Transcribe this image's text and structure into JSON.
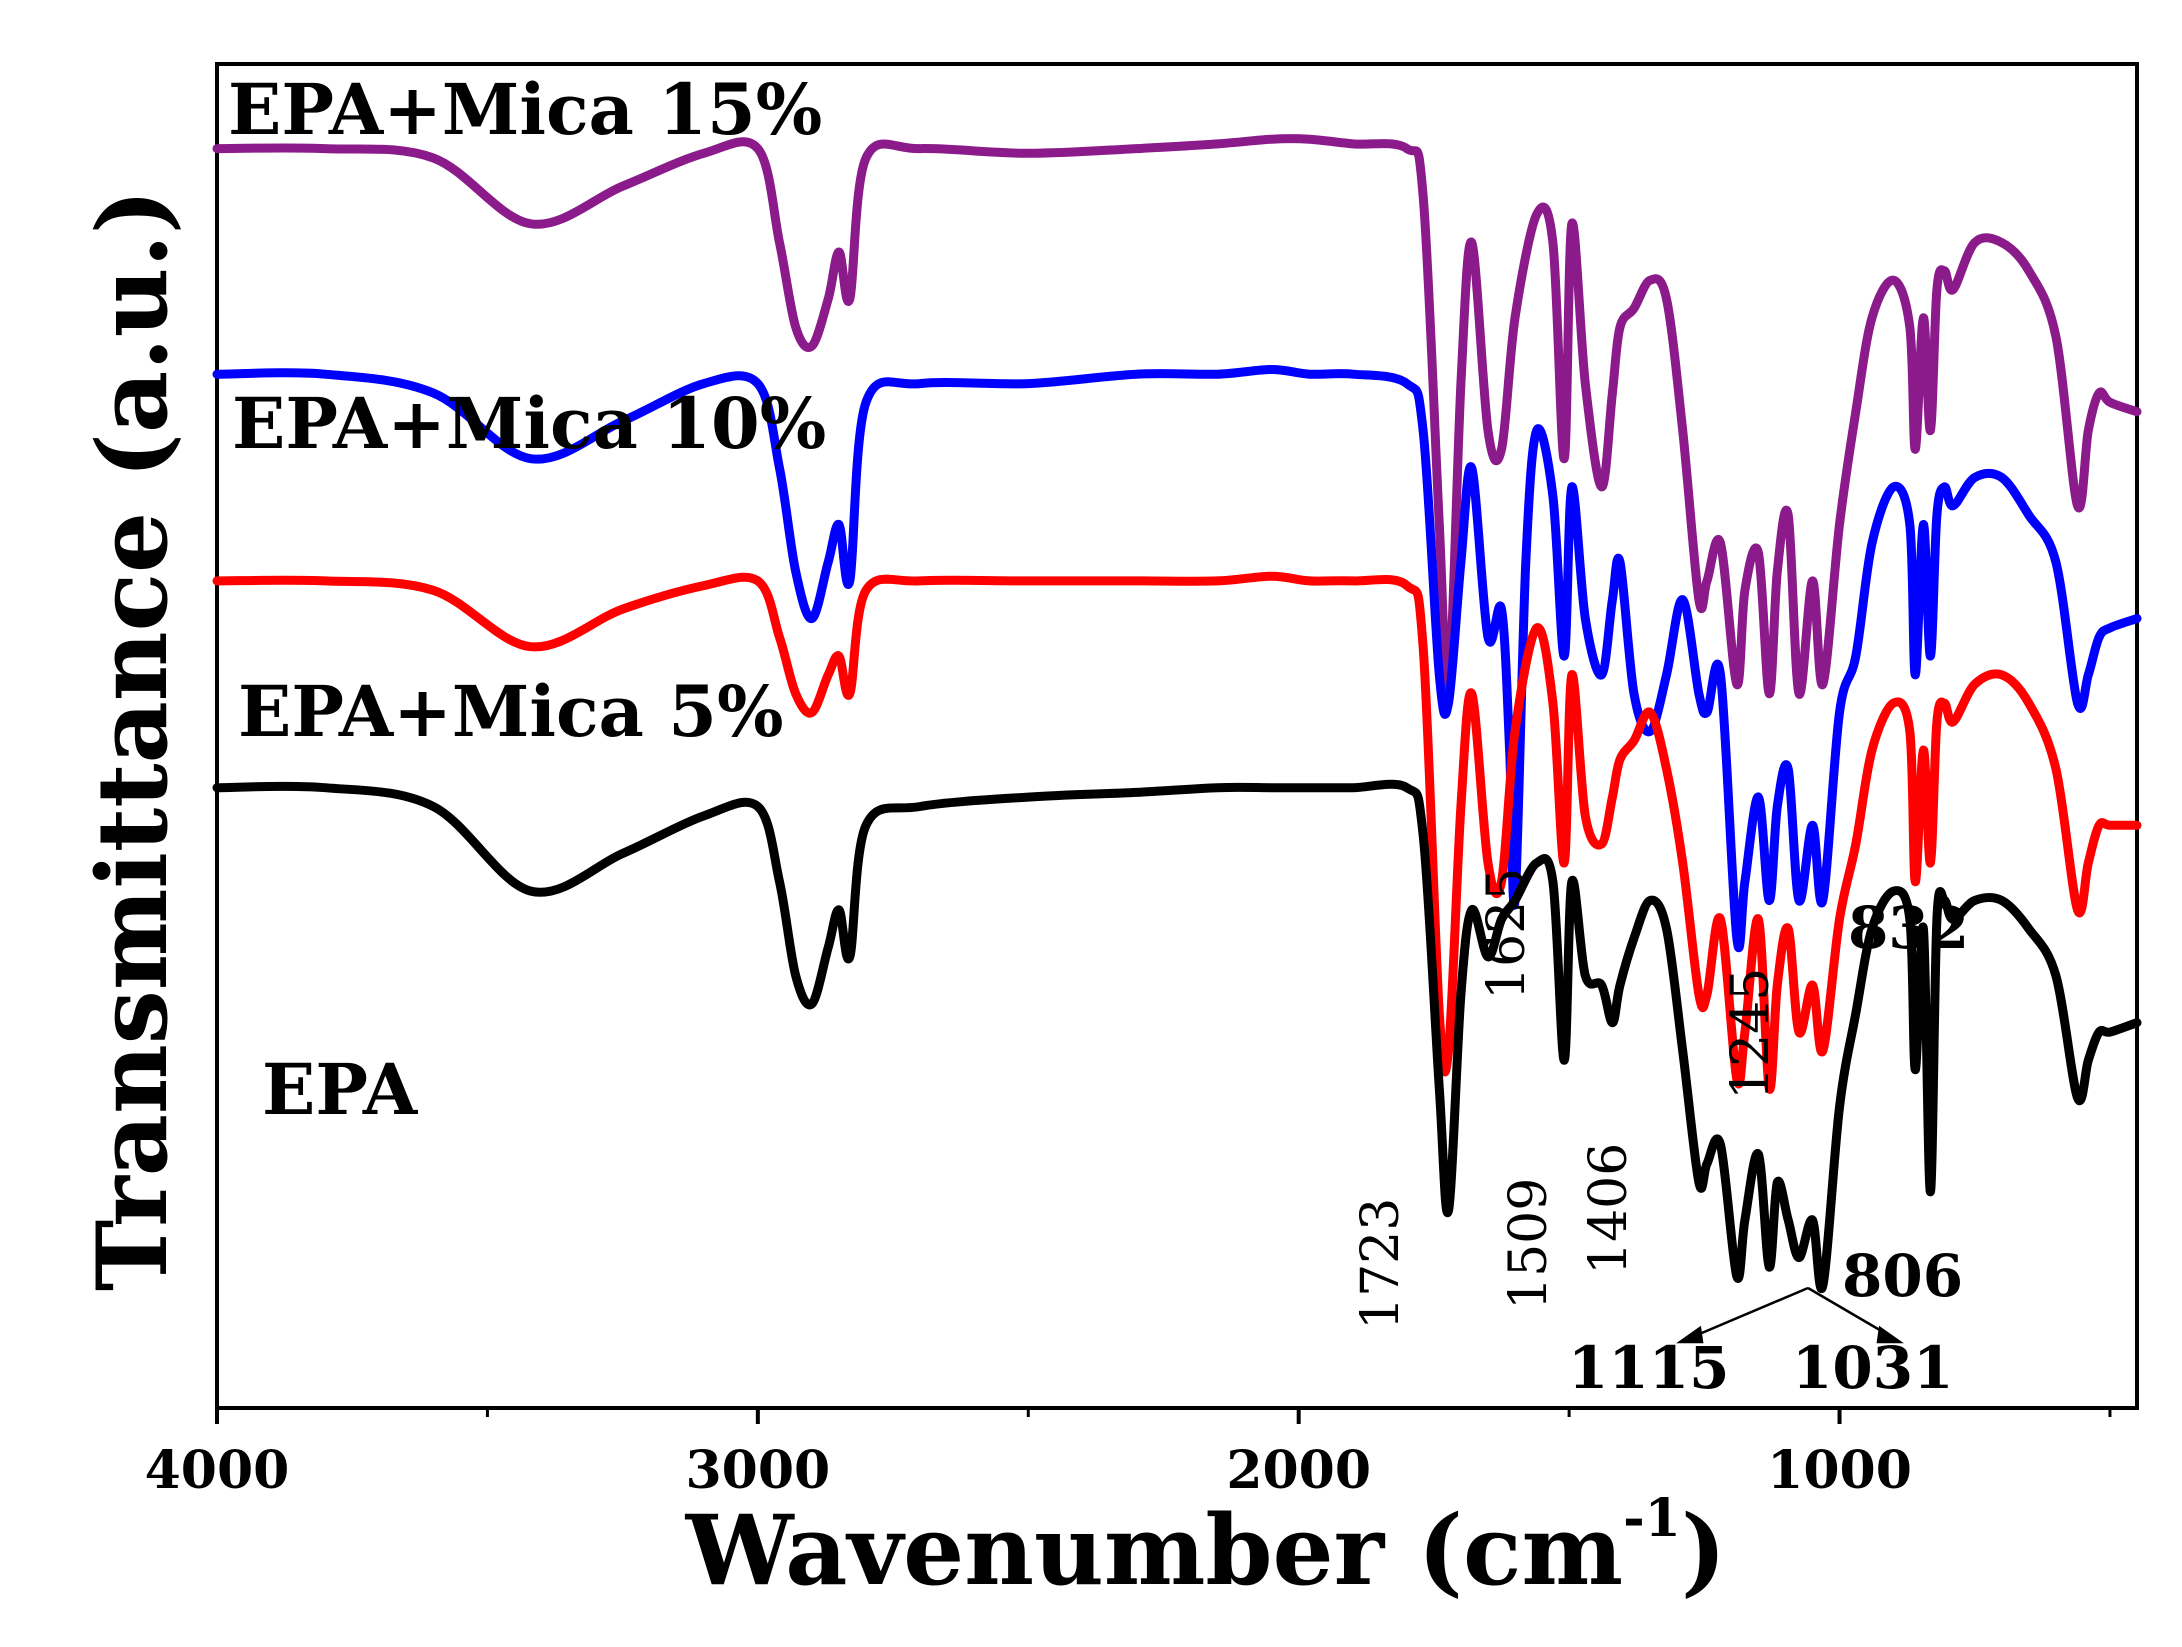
{
  "chart_data": {
    "type": "line",
    "title": "",
    "xlabel": "Wavenumber (cm",
    "xlabel_sup": "-1",
    "xlabel_close": ")",
    "ylabel": "Transmittance (a.u.)",
    "xlim": [
      4000,
      450
    ],
    "x_reversed": true,
    "xticks": [
      4000,
      3000,
      2000,
      1000
    ],
    "yticks": [],
    "grid": false,
    "legend": "inline-labels",
    "colors": {
      "EPA": "#000000",
      "EPA+Mica 5%": "#ff0000",
      "EPA+Mica 10%": "#0000ff",
      "EPA+Mica 15%": "#8b1a8b"
    },
    "series": [
      {
        "name": "EPA+Mica 15%",
        "color": "#8b1a8b",
        "offset": 6.8,
        "x": [
          4000,
          3800,
          3600,
          3420,
          3250,
          3100,
          3000,
          2960,
          2930,
          2900,
          2870,
          2850,
          2830,
          2800,
          2700,
          2500,
          2300,
          2150,
          2050,
          1980,
          1900,
          1800,
          1770,
          1740,
          1723,
          1700,
          1680,
          1650,
          1625,
          1600,
          1560,
          1530,
          1509,
          1495,
          1470,
          1440,
          1420,
          1406,
          1380,
          1350,
          1320,
          1290,
          1260,
          1245,
          1220,
          1190,
          1175,
          1150,
          1130,
          1115,
          1095,
          1075,
          1050,
          1031,
          1000,
          970,
          940,
          900,
          870,
          860,
          845,
          832,
          820,
          806,
          790,
          750,
          700,
          650,
          600,
          560,
          540,
          520,
          500,
          450
        ],
        "y": [
          0.0,
          0.0,
          -0.1,
          -0.8,
          -0.4,
          -0.05,
          0.0,
          -1.0,
          -1.9,
          -2.1,
          -1.6,
          -1.1,
          -1.6,
          -0.1,
          0.0,
          -0.05,
          0.0,
          0.05,
          0.1,
          0.1,
          0.05,
          0.0,
          -0.5,
          -4.0,
          -5.8,
          -2.5,
          -1.0,
          -3.0,
          -3.2,
          -1.8,
          -0.7,
          -1.0,
          -3.3,
          -0.8,
          -2.5,
          -3.6,
          -2.6,
          -1.9,
          -1.7,
          -1.4,
          -1.6,
          -3.0,
          -4.8,
          -4.6,
          -4.2,
          -5.7,
          -4.7,
          -4.3,
          -5.8,
          -4.5,
          -3.9,
          -5.8,
          -4.6,
          -5.7,
          -4.0,
          -2.8,
          -1.8,
          -1.4,
          -1.9,
          -3.2,
          -1.8,
          -3.0,
          -1.5,
          -1.3,
          -1.5,
          -1.0,
          -1.0,
          -1.3,
          -2.0,
          -3.8,
          -3.0,
          -2.6,
          -2.7,
          -2.8
        ]
      },
      {
        "name": "EPA+Mica 10%",
        "color": "#0000ff",
        "offset": 4.4,
        "x": [
          4000,
          3800,
          3600,
          3420,
          3250,
          3100,
          3000,
          2960,
          2930,
          2900,
          2870,
          2850,
          2830,
          2800,
          2700,
          2500,
          2300,
          2150,
          2050,
          1980,
          1900,
          1800,
          1770,
          1740,
          1723,
          1700,
          1680,
          1650,
          1625,
          1610,
          1600,
          1580,
          1560,
          1530,
          1509,
          1495,
          1470,
          1440,
          1420,
          1406,
          1380,
          1350,
          1320,
          1290,
          1260,
          1245,
          1220,
          1190,
          1175,
          1150,
          1130,
          1115,
          1095,
          1075,
          1050,
          1031,
          1000,
          970,
          940,
          900,
          870,
          860,
          845,
          832,
          820,
          806,
          790,
          750,
          700,
          650,
          600,
          560,
          540,
          520,
          500,
          450
        ],
        "y": [
          0.0,
          0.0,
          -0.2,
          -0.9,
          -0.5,
          -0.1,
          -0.1,
          -1.0,
          -2.1,
          -2.6,
          -2.0,
          -1.6,
          -2.2,
          -0.3,
          -0.1,
          -0.1,
          0.0,
          0.0,
          0.05,
          0.0,
          0.0,
          -0.1,
          -0.6,
          -3.2,
          -3.5,
          -2.0,
          -1.0,
          -2.8,
          -2.5,
          -4.0,
          -5.6,
          -2.0,
          -0.6,
          -1.3,
          -3.0,
          -1.2,
          -2.6,
          -3.2,
          -2.4,
          -2.0,
          -3.4,
          -3.8,
          -3.2,
          -2.4,
          -3.4,
          -3.6,
          -3.2,
          -6.0,
          -5.4,
          -4.5,
          -5.6,
          -4.6,
          -4.2,
          -5.6,
          -4.8,
          -5.6,
          -3.6,
          -3.0,
          -1.8,
          -1.2,
          -1.6,
          -3.2,
          -1.6,
          -3.0,
          -1.5,
          -1.2,
          -1.4,
          -1.1,
          -1.1,
          -1.5,
          -2.0,
          -3.5,
          -3.2,
          -2.8,
          -2.7,
          -2.6
        ]
      },
      {
        "name": "EPA+Mica 5%",
        "color": "#ff0000",
        "offset": 2.2,
        "x": [
          4000,
          3800,
          3600,
          3420,
          3250,
          3100,
          3000,
          2960,
          2930,
          2900,
          2870,
          2850,
          2830,
          2800,
          2700,
          2500,
          2300,
          2150,
          2050,
          1980,
          1900,
          1800,
          1770,
          1740,
          1723,
          1700,
          1680,
          1650,
          1625,
          1600,
          1560,
          1530,
          1509,
          1495,
          1470,
          1440,
          1420,
          1406,
          1380,
          1350,
          1320,
          1290,
          1260,
          1245,
          1220,
          1190,
          1175,
          1150,
          1130,
          1115,
          1095,
          1075,
          1050,
          1031,
          1000,
          970,
          940,
          900,
          870,
          860,
          845,
          832,
          820,
          806,
          790,
          750,
          700,
          650,
          600,
          560,
          540,
          520,
          500,
          450
        ],
        "y": [
          0.0,
          0.0,
          -0.1,
          -0.7,
          -0.3,
          -0.05,
          0.0,
          -0.6,
          -1.2,
          -1.4,
          -1.0,
          -0.8,
          -1.2,
          -0.1,
          0.0,
          0.0,
          0.0,
          0.0,
          0.05,
          0.0,
          0.0,
          -0.05,
          -0.7,
          -4.6,
          -5.0,
          -2.4,
          -1.2,
          -3.0,
          -3.2,
          -1.6,
          -0.5,
          -1.3,
          -3.0,
          -1.0,
          -2.5,
          -2.8,
          -2.3,
          -1.9,
          -1.7,
          -1.4,
          -2.0,
          -3.0,
          -4.4,
          -4.4,
          -3.6,
          -5.3,
          -4.8,
          -3.6,
          -5.4,
          -4.3,
          -3.7,
          -4.8,
          -4.3,
          -5.0,
          -3.6,
          -2.8,
          -1.8,
          -1.3,
          -1.6,
          -3.2,
          -1.8,
          -3.0,
          -1.5,
          -1.3,
          -1.5,
          -1.1,
          -1.0,
          -1.3,
          -2.0,
          -3.5,
          -3.0,
          -2.6,
          -2.6,
          -2.6
        ]
      },
      {
        "name": "EPA",
        "color": "#000000",
        "offset": 0.0,
        "x": [
          4000,
          3800,
          3600,
          3420,
          3250,
          3100,
          3000,
          2960,
          2930,
          2900,
          2870,
          2850,
          2830,
          2800,
          2700,
          2500,
          2300,
          2150,
          2050,
          1980,
          1900,
          1800,
          1770,
          1740,
          1723,
          1700,
          1680,
          1650,
          1625,
          1600,
          1560,
          1530,
          1509,
          1495,
          1470,
          1440,
          1420,
          1406,
          1380,
          1350,
          1320,
          1290,
          1260,
          1245,
          1220,
          1190,
          1175,
          1150,
          1130,
          1115,
          1095,
          1075,
          1050,
          1031,
          1000,
          970,
          940,
          900,
          870,
          860,
          845,
          832,
          820,
          806,
          790,
          750,
          700,
          650,
          600,
          560,
          540,
          520,
          500,
          450
        ],
        "y": [
          0.0,
          0.0,
          -0.2,
          -1.1,
          -0.7,
          -0.3,
          -0.2,
          -1.0,
          -2.0,
          -2.3,
          -1.7,
          -1.3,
          -1.8,
          -0.4,
          -0.2,
          -0.1,
          -0.05,
          0.0,
          0.0,
          0.0,
          0.0,
          0.0,
          -0.5,
          -3.2,
          -4.5,
          -2.2,
          -1.3,
          -1.8,
          -1.4,
          -1.2,
          -0.8,
          -1.0,
          -2.9,
          -1.0,
          -2.0,
          -2.1,
          -2.5,
          -2.1,
          -1.6,
          -1.2,
          -1.5,
          -2.8,
          -4.2,
          -4.0,
          -3.8,
          -5.2,
          -4.6,
          -3.9,
          -5.1,
          -4.2,
          -4.6,
          -5.0,
          -4.6,
          -5.3,
          -3.4,
          -2.4,
          -1.5,
          -1.1,
          -1.4,
          -3.0,
          -1.5,
          -4.3,
          -1.4,
          -1.2,
          -1.4,
          -1.2,
          -1.2,
          -1.5,
          -2.0,
          -3.3,
          -2.9,
          -2.6,
          -2.6,
          -2.5
        ]
      }
    ],
    "annotations": [
      {
        "text": "1723",
        "series": "EPA",
        "rotated": true
      },
      {
        "text": "1509",
        "series": "EPA",
        "rotated": true
      },
      {
        "text": "1406",
        "series": "EPA",
        "rotated": true
      },
      {
        "text": "1115",
        "series": "EPA",
        "rotated": false,
        "arrow": true
      },
      {
        "text": "1031",
        "series": "EPA",
        "rotated": false,
        "arrow": true
      },
      {
        "text": "806",
        "series": "EPA",
        "rotated": false
      },
      {
        "text": "1625",
        "series": "EPA+Mica 5%",
        "rotated": true
      },
      {
        "text": "1245",
        "series": "EPA+Mica 5%",
        "rotated": true
      },
      {
        "text": "832",
        "series": "EPA+Mica 5%",
        "rotated": false
      }
    ]
  }
}
